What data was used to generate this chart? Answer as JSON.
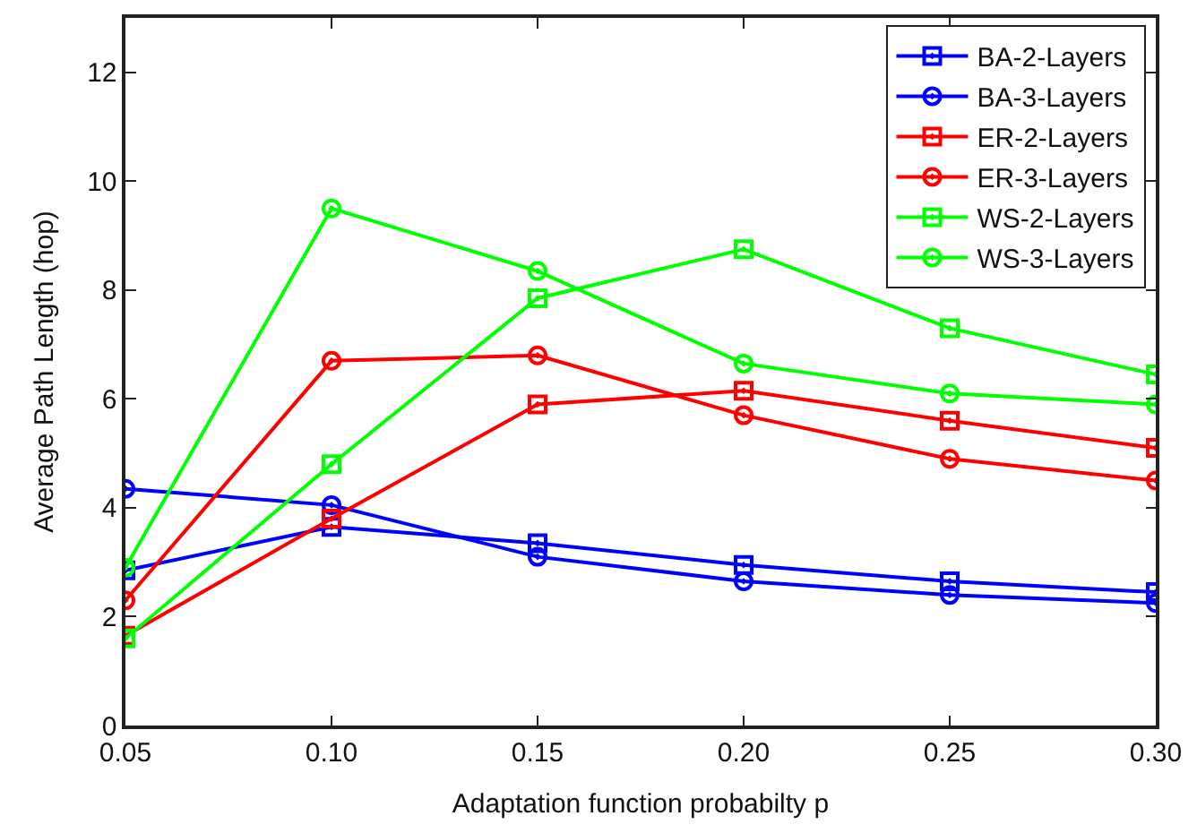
{
  "chart_data": {
    "type": "line",
    "xlabel": "Adaptation function probabilty p",
    "ylabel": "Average Path Length (hop)",
    "x": [
      0.05,
      0.1,
      0.15,
      0.2,
      0.25,
      0.3
    ],
    "xlim": [
      0.05,
      0.3
    ],
    "xticks": [
      {
        "value": 0.05,
        "label": "0.05"
      },
      {
        "value": 0.1,
        "label": "0.10"
      },
      {
        "value": 0.15,
        "label": "0.15"
      },
      {
        "value": 0.2,
        "label": "0.20"
      },
      {
        "value": 0.25,
        "label": "0.25"
      },
      {
        "value": 0.3,
        "label": "0.30"
      }
    ],
    "ylim": [
      0,
      13
    ],
    "yticks": [
      0,
      2,
      4,
      6,
      8,
      10,
      12
    ],
    "legend": "top right",
    "line_style": "solid",
    "series": [
      {
        "name": "BA-2-Layers",
        "color": "#0000ff",
        "marker": "square",
        "values": [
          2.85,
          3.65,
          3.35,
          2.95,
          2.65,
          2.45
        ]
      },
      {
        "name": "BA-3-Layers",
        "color": "#0000ff",
        "marker": "circle",
        "values": [
          4.35,
          4.05,
          3.1,
          2.65,
          2.4,
          2.25
        ]
      },
      {
        "name": "ER-2-Layers",
        "color": "#ff0000",
        "marker": "square",
        "values": [
          1.65,
          3.8,
          5.9,
          6.15,
          5.6,
          5.1
        ]
      },
      {
        "name": "ER-3-Layers",
        "color": "#ff0000",
        "marker": "circle",
        "values": [
          2.3,
          6.7,
          6.8,
          5.7,
          4.9,
          4.5
        ]
      },
      {
        "name": "WS-2-Layers",
        "color": "#00ff00",
        "marker": "square",
        "values": [
          1.6,
          4.8,
          7.85,
          8.75,
          7.3,
          6.45
        ]
      },
      {
        "name": "WS-3-Layers",
        "color": "#00ff00",
        "marker": "circle",
        "values": [
          2.9,
          9.5,
          8.35,
          6.65,
          6.1,
          5.9
        ]
      }
    ]
  }
}
